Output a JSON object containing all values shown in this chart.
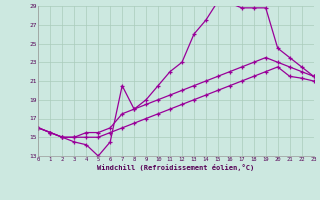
{
  "bg_color": "#cce8e0",
  "line_color": "#990099",
  "grid_color": "#aaccbb",
  "xlabel": "Windchill (Refroidissement éolien,°C)",
  "xlim": [
    0,
    23
  ],
  "ylim": [
    13,
    29
  ],
  "yticks": [
    13,
    15,
    17,
    19,
    21,
    23,
    25,
    27,
    29
  ],
  "xticks": [
    0,
    1,
    2,
    3,
    4,
    5,
    6,
    7,
    8,
    9,
    10,
    11,
    12,
    13,
    14,
    15,
    16,
    17,
    18,
    19,
    20,
    21,
    22,
    23
  ],
  "line1_x": [
    0,
    1,
    2,
    3,
    4,
    5,
    6,
    7,
    8,
    9,
    10,
    11,
    12,
    13,
    14,
    15,
    16,
    17,
    18,
    19,
    20,
    21,
    22,
    23
  ],
  "line1_y": [
    16,
    15.5,
    15.0,
    14.5,
    14.2,
    13.0,
    14.5,
    20.5,
    18.0,
    19.0,
    20.5,
    22.0,
    23.0,
    26.0,
    27.5,
    29.5,
    29.3,
    28.8,
    28.8,
    28.8,
    24.5,
    23.5,
    22.5,
    21.5
  ],
  "line2_x": [
    0,
    1,
    2,
    3,
    4,
    5,
    6,
    7,
    8,
    9,
    10,
    11,
    12,
    13,
    14,
    15,
    16,
    17,
    18,
    19,
    20,
    21,
    22,
    23
  ],
  "line2_y": [
    16,
    15.5,
    15.0,
    15.0,
    15.5,
    15.5,
    16.0,
    17.5,
    18.0,
    18.5,
    19.0,
    19.5,
    20.0,
    20.5,
    21.0,
    21.5,
    22.0,
    22.5,
    23.0,
    23.5,
    23.0,
    22.5,
    22.0,
    21.5
  ],
  "line3_x": [
    0,
    1,
    2,
    3,
    4,
    5,
    6,
    7,
    8,
    9,
    10,
    11,
    12,
    13,
    14,
    15,
    16,
    17,
    18,
    19,
    20,
    21,
    22,
    23
  ],
  "line3_y": [
    16,
    15.5,
    15.0,
    15.0,
    15.0,
    15.0,
    15.5,
    16.0,
    16.5,
    17.0,
    17.5,
    18.0,
    18.5,
    19.0,
    19.5,
    20.0,
    20.5,
    21.0,
    21.5,
    22.0,
    22.5,
    21.5,
    21.3,
    21.0
  ]
}
